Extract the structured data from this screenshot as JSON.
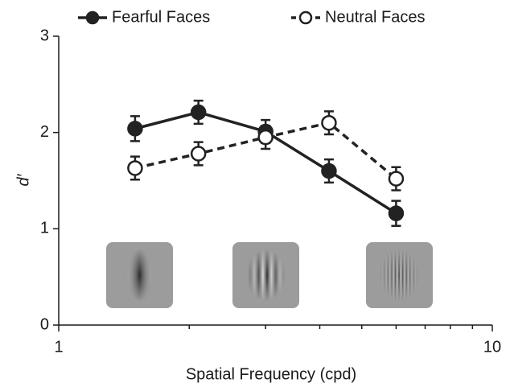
{
  "chart_data": {
    "type": "line",
    "x_label": "Spatial Frequency (cpd)",
    "y_label": "d′",
    "x": [
      1.5,
      2.1,
      3,
      4.2,
      6
    ],
    "series": [
      {
        "name": "Fearful Faces",
        "color": "#222222",
        "filled": true,
        "dashed": false,
        "values": [
          2.04,
          2.21,
          2.01,
          1.6,
          1.16
        ],
        "errors": [
          0.13,
          0.12,
          0.12,
          0.12,
          0.13
        ]
      },
      {
        "name": "Neutral Faces",
        "color": "#222222",
        "filled": false,
        "dashed": true,
        "values": [
          1.63,
          1.78,
          1.95,
          2.1,
          1.52
        ],
        "errors": [
          0.12,
          0.12,
          0.12,
          0.12,
          0.12
        ]
      }
    ],
    "xlim": [
      1,
      10
    ],
    "xscale": "log",
    "xticks": [
      1,
      10
    ],
    "xminor_ticks": [
      2,
      3,
      4,
      5,
      6,
      7,
      8,
      9
    ],
    "ylim": [
      0,
      3
    ],
    "yticks": [
      0,
      1,
      2,
      3
    ],
    "legend": "top"
  }
}
